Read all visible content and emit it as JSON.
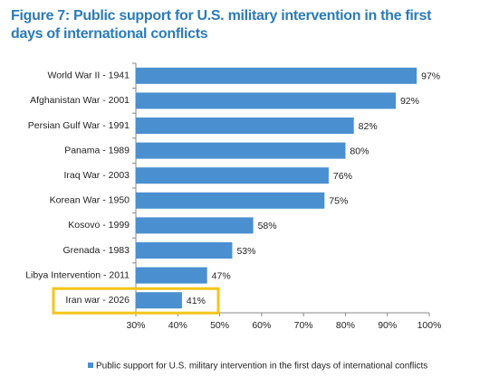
{
  "chart_data": {
    "type": "hbar",
    "title": "Figure 7: Public support for U.S. military intervention in the first days of international conflicts",
    "categories": [
      "World War II - 1941",
      "Afghanistan War - 2001",
      "Persian Gulf War - 1991",
      "Panama - 1989",
      "Iraq War - 2003",
      "Korean War - 1950",
      "Kosovo - 1999",
      "Grenada - 1983",
      "Libya Intervention - 2011",
      "Iran war - 2026"
    ],
    "series": [
      {
        "name": "Public support for U.S. military intervention in the first days of international conflicts",
        "color": "#4a8fcf",
        "values": [
          97,
          92,
          82,
          80,
          76,
          75,
          58,
          53,
          47,
          41
        ],
        "value_labels": [
          "97%",
          "92%",
          "82%",
          "80%",
          "76%",
          "75%",
          "58%",
          "53%",
          "47%",
          "41%"
        ]
      }
    ],
    "xlim": [
      30,
      100
    ],
    "xticks": [
      {
        "value": 30,
        "label": "30%"
      },
      {
        "value": 40,
        "label": "40%"
      },
      {
        "value": 50,
        "label": "50%"
      },
      {
        "value": 60,
        "label": "60%"
      },
      {
        "value": 70,
        "label": "70%"
      },
      {
        "value": 80,
        "label": "80%"
      },
      {
        "value": 90,
        "label": "90%"
      },
      {
        "value": 100,
        "label": "100%"
      }
    ],
    "highlight": {
      "index": 9,
      "color": "#f5c518"
    },
    "legend": "bottom"
  }
}
